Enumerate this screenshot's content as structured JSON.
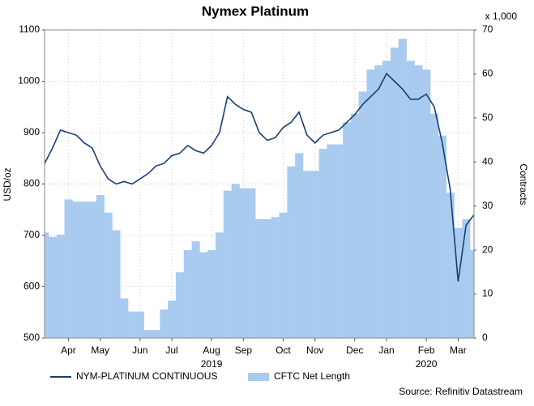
{
  "chart_data": {
    "type": "line",
    "title": "Nymex Platinum",
    "y_label": "USD/oz",
    "y2_label": "Contracts",
    "y2_unit": "x 1,000",
    "source": "Source: Refinitiv Datastream",
    "categories": [
      null,
      null,
      null,
      "Apr",
      null,
      null,
      null,
      "May",
      null,
      null,
      null,
      null,
      "Jun",
      null,
      null,
      null,
      "Jul",
      null,
      null,
      null,
      null,
      "Aug",
      null,
      null,
      null,
      "Sep",
      null,
      null,
      null,
      null,
      "Oct",
      null,
      null,
      null,
      "Nov",
      null,
      null,
      null,
      null,
      "Dec",
      null,
      null,
      null,
      "Jan",
      null,
      null,
      null,
      null,
      "Feb",
      null,
      null,
      null,
      "Mar",
      null,
      null
    ],
    "years": [
      null,
      null,
      null,
      null,
      null,
      null,
      null,
      null,
      null,
      null,
      null,
      null,
      null,
      null,
      null,
      null,
      null,
      null,
      null,
      null,
      null,
      "2019",
      null,
      null,
      null,
      null,
      null,
      null,
      null,
      null,
      null,
      null,
      null,
      null,
      null,
      null,
      null,
      null,
      null,
      null,
      null,
      null,
      null,
      null,
      null,
      null,
      null,
      null,
      "2020",
      null,
      null,
      null,
      null,
      null,
      null
    ],
    "series": [
      {
        "name": "NYM-PLATINUM CONTINUOUS",
        "color": "#163f73",
        "axis": "y",
        "values": [
          840,
          870,
          905,
          900,
          895,
          880,
          870,
          835,
          810,
          800,
          805,
          800,
          810,
          820,
          835,
          840,
          855,
          860,
          875,
          865,
          860,
          875,
          900,
          970,
          955,
          945,
          940,
          900,
          885,
          890,
          910,
          920,
          940,
          895,
          880,
          895,
          900,
          905,
          920,
          935,
          955,
          970,
          985,
          1015,
          1000,
          985,
          965,
          965,
          975,
          950,
          880,
          790,
          610,
          720,
          740
        ]
      },
      {
        "name": "CFTC Net Length",
        "color": "#a9cbef",
        "type": "bar",
        "axis": "y2",
        "values": [
          24,
          23,
          23.5,
          31.5,
          31,
          31,
          31,
          32.5,
          28.5,
          24.5,
          9,
          6,
          6,
          1.8,
          1.8,
          6.5,
          8.5,
          15,
          20,
          22,
          19.5,
          20,
          24,
          33.5,
          35,
          34,
          34,
          27,
          27,
          27.5,
          28.5,
          39,
          42,
          38,
          38,
          43,
          44,
          44,
          49,
          51,
          56,
          61,
          62,
          63,
          66,
          68,
          63,
          62,
          61,
          51,
          46,
          33,
          25,
          27,
          20
        ]
      }
    ],
    "ylim": [
      500,
      1100
    ],
    "yticks": [
      500,
      600,
      700,
      800,
      900,
      1000,
      1100
    ],
    "y2lim": [
      0,
      70
    ],
    "y2ticks": [
      0,
      10,
      20,
      30,
      40,
      50,
      60,
      70
    ],
    "grid": true
  }
}
